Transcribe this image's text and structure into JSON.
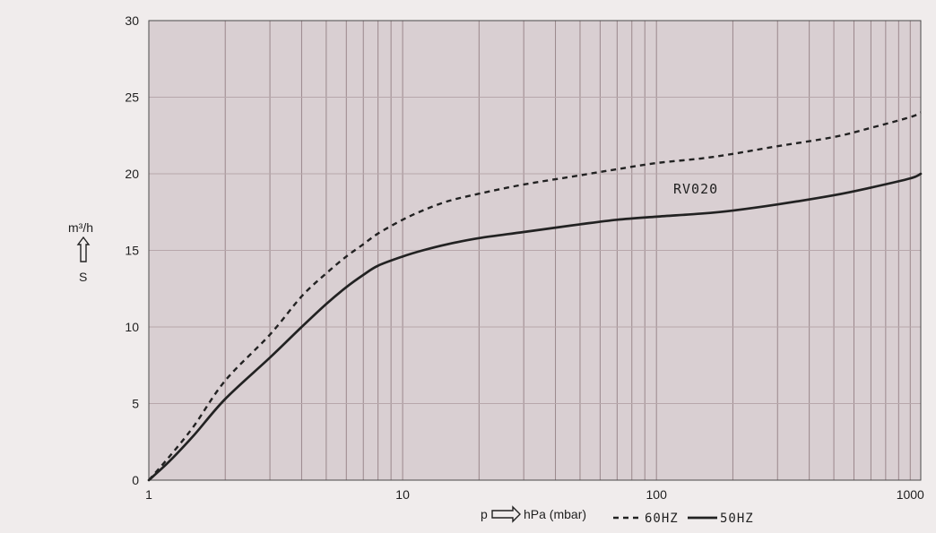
{
  "chart_data": {
    "type": "line",
    "title": "",
    "x_scale": "log",
    "xlim": [
      1,
      1100
    ],
    "ylim": [
      0,
      30
    ],
    "grid": true,
    "legend_position": "bottom",
    "x_ticks": [
      "1",
      "10",
      "100",
      "1000"
    ],
    "y_ticks": [
      "0",
      "5",
      "10",
      "15",
      "20",
      "25",
      "30"
    ],
    "xlabel": "p",
    "xlabel_unit": "hPa (mbar)",
    "ylabel_unit": "m³/h",
    "ylabel": "S",
    "annotation": "RV020",
    "legend": [
      {
        "label": "60HZ",
        "style": "dashed"
      },
      {
        "label": "50HZ",
        "style": "solid"
      }
    ],
    "series": [
      {
        "name": "60HZ",
        "x": [
          1,
          1.2,
          1.5,
          2,
          3,
          4,
          5,
          6,
          7,
          8,
          10,
          12,
          15,
          20,
          30,
          50,
          70,
          100,
          150,
          200,
          300,
          500,
          700,
          1000,
          1100
        ],
        "y": [
          0,
          1.5,
          3.5,
          6.5,
          9.5,
          12.0,
          13.5,
          14.6,
          15.4,
          16.1,
          17.0,
          17.6,
          18.2,
          18.7,
          19.3,
          19.9,
          20.3,
          20.7,
          21.0,
          21.3,
          21.8,
          22.4,
          23.0,
          23.7,
          24.0
        ]
      },
      {
        "name": "50HZ",
        "x": [
          1,
          1.2,
          1.5,
          2,
          3,
          4,
          5,
          6,
          7,
          8,
          10,
          12,
          15,
          20,
          30,
          50,
          70,
          100,
          150,
          200,
          300,
          500,
          700,
          1000,
          1100
        ],
        "y": [
          0,
          1.2,
          2.9,
          5.3,
          8.0,
          10.0,
          11.5,
          12.6,
          13.4,
          14.0,
          14.6,
          15.0,
          15.4,
          15.8,
          16.2,
          16.7,
          17.0,
          17.2,
          17.4,
          17.6,
          18.0,
          18.6,
          19.1,
          19.7,
          20.0
        ]
      }
    ]
  }
}
